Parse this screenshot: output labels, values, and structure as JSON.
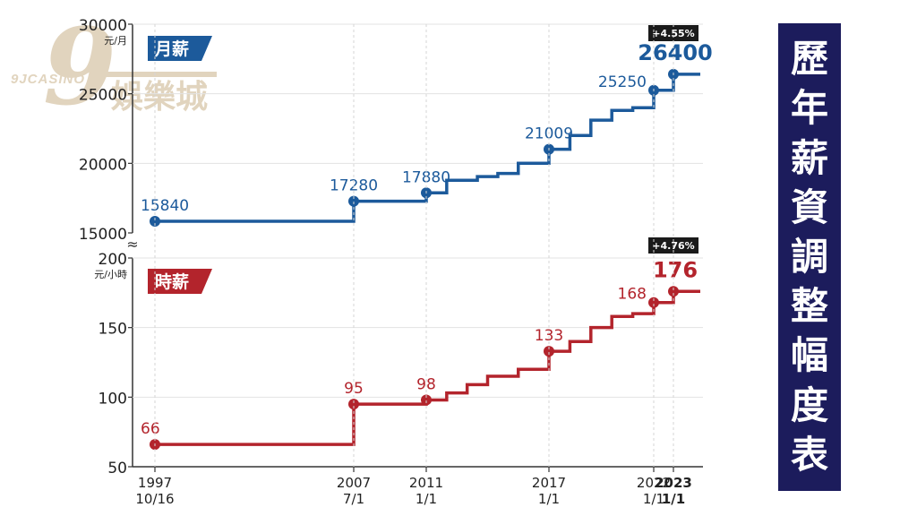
{
  "title": "歷年薪資調整幅度表",
  "watermark": {
    "digit": "9",
    "brand": "9JCASINO",
    "name": "娛樂城"
  },
  "colors": {
    "monthly": "#1c5a9b",
    "hourly": "#b3242c",
    "title_bg": "#1c1c5c",
    "badge_bg": "#1a1a1a"
  },
  "x_axis": {
    "ticks": [
      {
        "year": "1997",
        "date": "10/16",
        "bold": false
      },
      {
        "year": "2007",
        "date": "7/1",
        "bold": false
      },
      {
        "year": "2011",
        "date": "1/1",
        "bold": false
      },
      {
        "year": "2017",
        "date": "1/1",
        "bold": false
      },
      {
        "year": "2022",
        "date": "1/1",
        "bold": false
      },
      {
        "year": "2023",
        "date": "1/1",
        "bold": true
      }
    ]
  },
  "chart_data": [
    {
      "type": "line",
      "step": true,
      "name": "月薪",
      "unit": "元/月",
      "ylim": [
        15000,
        30000
      ],
      "yticks": [
        15000,
        20000,
        25000,
        30000
      ],
      "x": [
        1997.79,
        2007.5,
        2011.0,
        2012.0,
        2013.5,
        2014.5,
        2015.5,
        2017.0,
        2018.0,
        2019.0,
        2020.0,
        2021.0,
        2022.0,
        2023.0
      ],
      "values": [
        15840,
        17280,
        17880,
        18780,
        19047,
        19273,
        20008,
        21009,
        22000,
        23100,
        23800,
        24000,
        25250,
        26400
      ],
      "labels": [
        {
          "index": 0,
          "text": "15840"
        },
        {
          "index": 1,
          "text": "17280"
        },
        {
          "index": 2,
          "text": "17880"
        },
        {
          "index": 7,
          "text": "21009"
        },
        {
          "index": 12,
          "text": "25250"
        },
        {
          "index": 13,
          "text": "26400"
        }
      ],
      "change_badge": "+4.55%"
    },
    {
      "type": "line",
      "step": true,
      "name": "時薪",
      "unit": "元/小時",
      "ylim": [
        50,
        200
      ],
      "yticks": [
        50,
        100,
        150,
        200
      ],
      "x": [
        1997.79,
        2007.5,
        2011.0,
        2012.0,
        2013.0,
        2014.0,
        2015.5,
        2017.0,
        2018.0,
        2019.0,
        2020.0,
        2021.0,
        2022.0,
        2023.0
      ],
      "values": [
        66,
        95,
        98,
        103,
        109,
        115,
        120,
        133,
        140,
        150,
        158,
        160,
        168,
        176
      ],
      "labels": [
        {
          "index": 0,
          "text": "66"
        },
        {
          "index": 1,
          "text": "95"
        },
        {
          "index": 2,
          "text": "98"
        },
        {
          "index": 7,
          "text": "133"
        },
        {
          "index": 12,
          "text": "168"
        },
        {
          "index": 13,
          "text": "176"
        }
      ],
      "change_badge": "+4.76%"
    }
  ]
}
